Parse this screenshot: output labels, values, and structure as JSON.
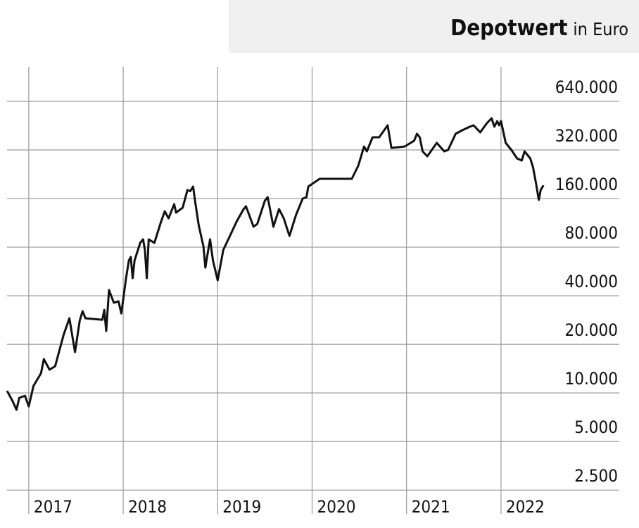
{
  "chart_data": {
    "type": "line",
    "title": "Depotwert",
    "subtitle": "in Euro",
    "x": [
      2016.77,
      2016.83,
      2016.87,
      2016.9,
      2016.96,
      2017.0,
      2017.05,
      2017.13,
      2017.16,
      2017.22,
      2017.28,
      2017.37,
      2017.43,
      2017.49,
      2017.54,
      2017.57,
      2017.6,
      2017.78,
      2017.8,
      2017.82,
      2017.85,
      2017.9,
      2017.95,
      2017.98,
      2018.03,
      2018.06,
      2018.08,
      2018.1,
      2018.12,
      2018.18,
      2018.21,
      2018.23,
      2018.25,
      2018.27,
      2018.33,
      2018.4,
      2018.44,
      2018.48,
      2018.54,
      2018.56,
      2018.63,
      2018.68,
      2018.71,
      2018.74,
      2018.76,
      2018.8,
      2018.85,
      2018.87,
      2018.9,
      2018.92,
      2018.95,
      2019.0,
      2019.06,
      2019.13,
      2019.2,
      2019.27,
      2019.3,
      2019.38,
      2019.42,
      2019.5,
      2019.53,
      2019.59,
      2019.65,
      2019.7,
      2019.76,
      2019.83,
      2019.9,
      2019.94,
      2019.96,
      2020.08,
      2020.42,
      2020.49,
      2020.55,
      2020.58,
      2020.64,
      2020.71,
      2020.8,
      2020.84,
      2020.98,
      2021.08,
      2021.11,
      2021.14,
      2021.17,
      2021.22,
      2021.32,
      2021.4,
      2021.44,
      2021.52,
      2021.59,
      2021.67,
      2021.71,
      2021.78,
      2021.85,
      2021.9,
      2021.93,
      2021.96,
      2021.98,
      2022.0,
      2022.05,
      2022.11,
      2022.17,
      2022.22,
      2022.25,
      2022.31,
      2022.34,
      2022.37,
      2022.4,
      2022.42,
      2022.45
    ],
    "series": [
      {
        "name": "Depotwert",
        "color": "#111111",
        "values": [
          10300,
          8870,
          7860,
          9320,
          9600,
          8260,
          11060,
          13250,
          16200,
          13930,
          14650,
          23000,
          29000,
          17900,
          28100,
          32100,
          29000,
          28400,
          32700,
          24200,
          43400,
          36200,
          36900,
          31100,
          51400,
          66100,
          69500,
          51400,
          66100,
          85000,
          89400,
          76900,
          51400,
          89400,
          85000,
          114900,
          133500,
          120700,
          147700,
          130900,
          140500,
          180500,
          178000,
          189800,
          155300,
          109200,
          80800,
          59800,
          76900,
          89400,
          66100,
          49900,
          76900,
          93900,
          114900,
          136200,
          143300,
          107000,
          111400,
          155300,
          163200,
          107000,
          137700,
          120700,
          93900,
          127000,
          160000,
          163200,
          189800,
          212000,
          212000,
          256500,
          336300,
          313600,
          383400,
          383400,
          454800,
          329700,
          336300,
          364800,
          403300,
          383400,
          313600,
          292500,
          354000,
          313600,
          320000,
          403300,
          424000,
          445800,
          454800,
          411300,
          468800,
          502800,
          445800,
          483000,
          454800,
          483000,
          354000,
          320000,
          283700,
          275300,
          313600,
          283700,
          249000,
          199700,
          156900,
          180500,
          193600
        ]
      }
    ],
    "xlim": [
      2016.77,
      2022.5
    ],
    "xticks": [
      2017,
      2018,
      2019,
      2020,
      2021,
      2022
    ],
    "ylim": [
      1780,
      1047000
    ],
    "yscale": "log",
    "yticks": [
      {
        "value": 2500,
        "label": "2.500"
      },
      {
        "value": 5000,
        "label": "5.000"
      },
      {
        "value": 10000,
        "label": "10.000"
      },
      {
        "value": 20000,
        "label": "20.000"
      },
      {
        "value": 40000,
        "label": "40.000"
      },
      {
        "value": 80000,
        "label": "80.000"
      },
      {
        "value": 160000,
        "label": "160.000"
      },
      {
        "value": 320000,
        "label": "320.000"
      },
      {
        "value": 640000,
        "label": "640.000"
      }
    ],
    "grid": true
  }
}
